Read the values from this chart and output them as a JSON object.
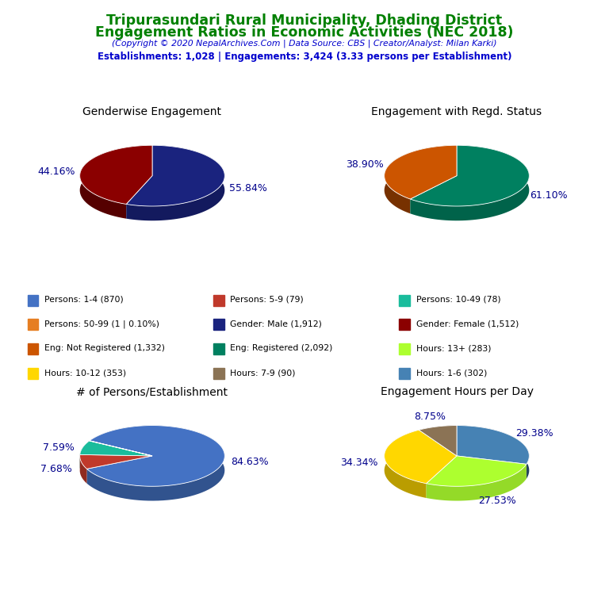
{
  "title_line1": "Tripurasundari Rural Municipality, Dhading District",
  "title_line2": "Engagement Ratios in Economic Activities (NEC 2018)",
  "subtitle": "(Copyright © 2020 NepalArchives.Com | Data Source: CBS | Creator/Analyst: Milan Karki)",
  "info_line": "Establishments: 1,028 | Engagements: 3,424 (3.33 persons per Establishment)",
  "title_color": "#008000",
  "subtitle_color": "#0000CD",
  "info_color": "#0000CD",
  "chart1_title": "Genderwise Engagement",
  "chart1_values": [
    55.84,
    44.16
  ],
  "chart1_colors": [
    "#1a237e",
    "#8b0000"
  ],
  "chart1_labels": [
    "55.84%",
    "44.16%"
  ],
  "chart1_startangle": 90,
  "chart2_title": "Engagement with Regd. Status",
  "chart2_values": [
    61.1,
    38.9
  ],
  "chart2_colors": [
    "#008060",
    "#cc5500"
  ],
  "chart2_labels": [
    "61.10%",
    "38.90%"
  ],
  "chart2_startangle": 90,
  "chart3_title": "# of Persons/Establishment",
  "chart3_values": [
    84.63,
    7.68,
    7.59,
    0.1
  ],
  "chart3_colors": [
    "#4472c4",
    "#c0392b",
    "#1abc9c",
    "#e67e22"
  ],
  "chart3_labels": [
    "84.63%",
    "7.68%",
    "7.59%",
    ""
  ],
  "chart3_startangle": 150,
  "chart4_title": "Engagement Hours per Day",
  "chart4_values": [
    29.38,
    27.53,
    34.34,
    8.75
  ],
  "chart4_colors": [
    "#4682b4",
    "#adff2f",
    "#ffd700",
    "#8b7355"
  ],
  "chart4_labels": [
    "29.38%",
    "27.53%",
    "34.34%",
    "8.75%"
  ],
  "chart4_startangle": 90,
  "label_color": "#00008B",
  "legend_items": [
    {
      "label": "Persons: 1-4 (870)",
      "color": "#4472c4"
    },
    {
      "label": "Persons: 5-9 (79)",
      "color": "#c0392b"
    },
    {
      "label": "Persons: 10-49 (78)",
      "color": "#1abc9c"
    },
    {
      "label": "Persons: 50-99 (1 | 0.10%)",
      "color": "#e67e22"
    },
    {
      "label": "Gender: Male (1,912)",
      "color": "#1a237e"
    },
    {
      "label": "Gender: Female (1,512)",
      "color": "#8b0000"
    },
    {
      "label": "Eng: Not Registered (1,332)",
      "color": "#cc5500"
    },
    {
      "label": "Eng: Registered (2,092)",
      "color": "#008060"
    },
    {
      "label": "Hours: 13+ (283)",
      "color": "#adff2f"
    },
    {
      "label": "Hours: 10-12 (353)",
      "color": "#ffd700"
    },
    {
      "label": "Hours: 7-9 (90)",
      "color": "#8b7355"
    },
    {
      "label": "Hours: 1-6 (302)",
      "color": "#4682b4"
    }
  ]
}
